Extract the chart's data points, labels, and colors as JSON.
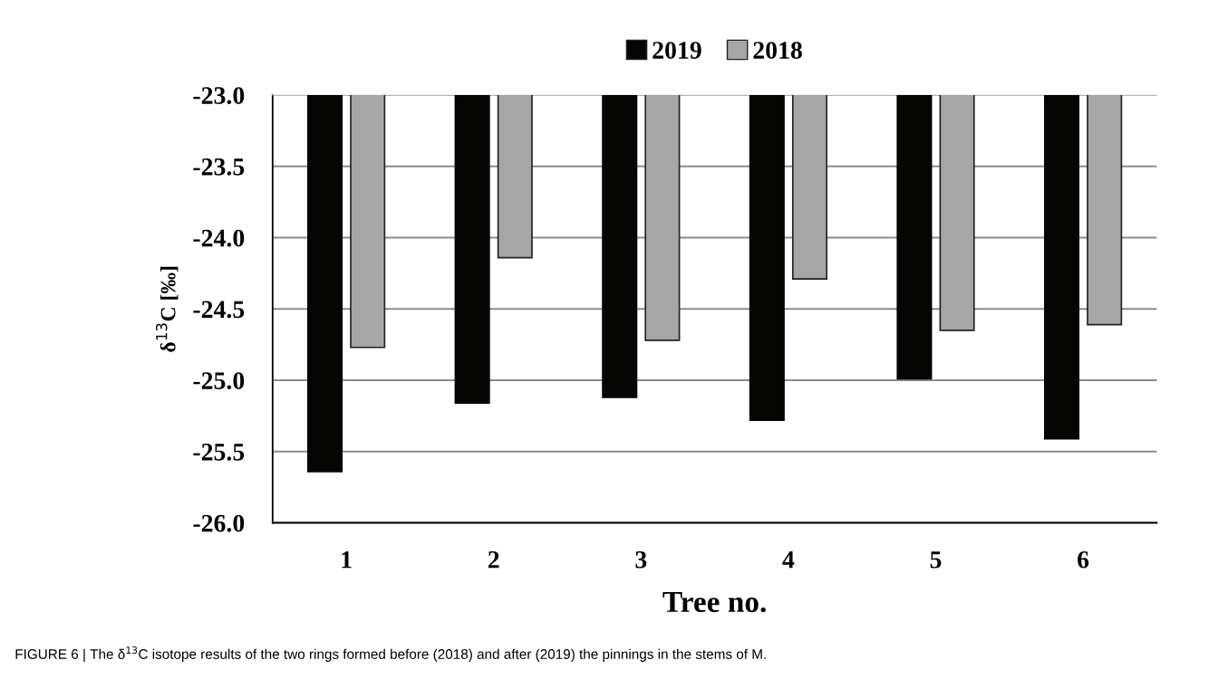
{
  "chart_data": {
    "type": "bar",
    "categories": [
      "1",
      "2",
      "3",
      "4",
      "5",
      "6"
    ],
    "series": [
      {
        "name": "2019",
        "color": "#050604",
        "values": [
          -25.64,
          -25.16,
          -25.12,
          -25.28,
          -24.99,
          -25.41
        ]
      },
      {
        "name": "2018",
        "color": "#a6a6a6",
        "values": [
          -24.77,
          -24.14,
          -24.72,
          -24.29,
          -24.65,
          -24.61
        ]
      }
    ],
    "xlabel": "Tree no.",
    "ylabel": "δ$^{13}$C [‰]",
    "ylim": [
      -26,
      -23
    ],
    "yticks": [
      {
        "value": -26,
        "label": "-26.0"
      },
      {
        "value": -25.5,
        "label": "-25.5"
      },
      {
        "value": -25,
        "label": "-25.0"
      },
      {
        "value": -24.5,
        "label": "-24.5"
      },
      {
        "value": -24,
        "label": "-24.0"
      },
      {
        "value": -23.5,
        "label": "-23.5"
      },
      {
        "value": -23,
        "label": "-23.0"
      }
    ],
    "grid": "y",
    "legend": "top",
    "annotations": [
      "FIGURE 6 | The δ$^{13}$C isotope results of the two rings formed before (2018) and after (2019) the pinnings in the stems of M."
    ]
  }
}
